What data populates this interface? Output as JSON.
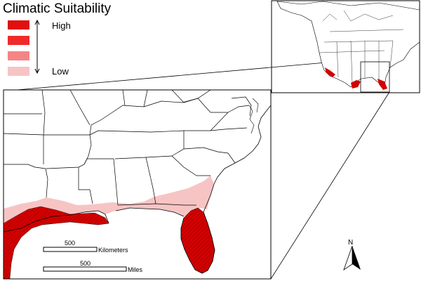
{
  "legend": {
    "title": "Climatic Suitability",
    "high_label": "High",
    "low_label": "Low",
    "classes": [
      {
        "name": "class-1",
        "color": "#e01010"
      },
      {
        "name": "class-2",
        "color": "#f02a2a"
      },
      {
        "name": "class-3",
        "color": "#f58585"
      },
      {
        "name": "class-4",
        "color": "#f7c4c4"
      }
    ]
  },
  "scale_bars": {
    "km_value": "500",
    "km_unit": "Kilometers",
    "mi_value": "500",
    "mi_unit": "Miles"
  },
  "north_arrow": {
    "label": "N"
  },
  "colors": {
    "high_suitability": "#d40000",
    "low_suitability": "#f7c4c4",
    "land_outline": "#000000",
    "background": "#ffffff"
  }
}
